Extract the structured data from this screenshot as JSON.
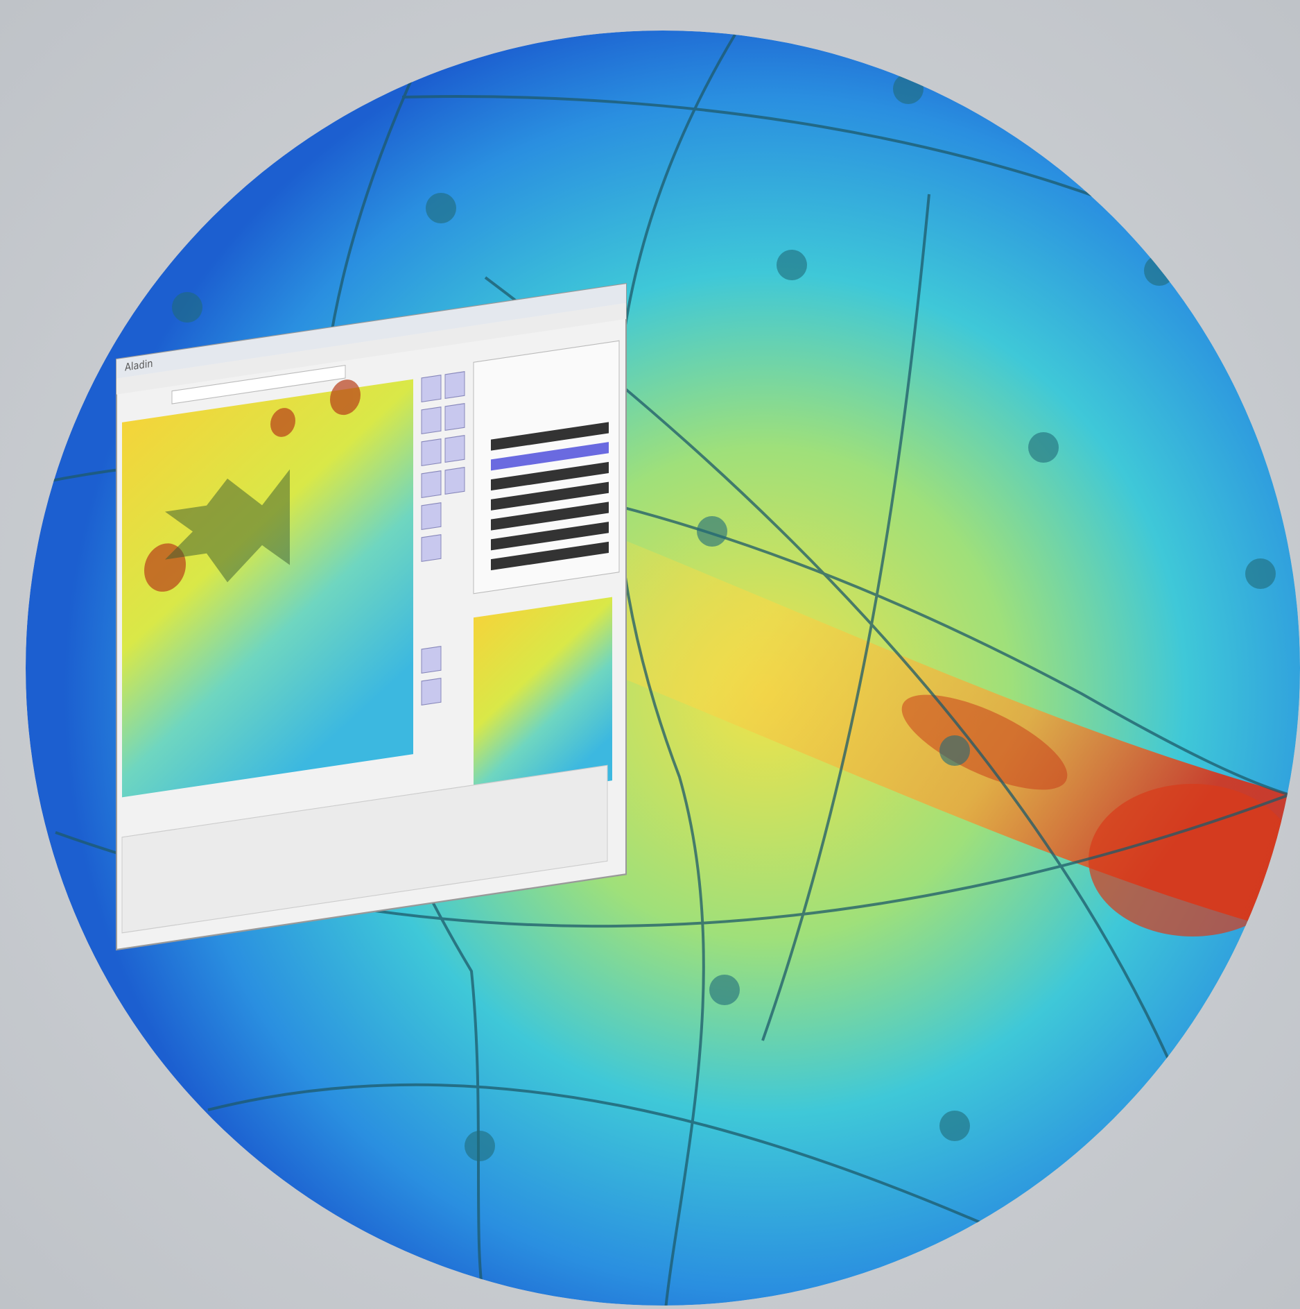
{
  "window": {
    "title": "Aladin"
  }
}
